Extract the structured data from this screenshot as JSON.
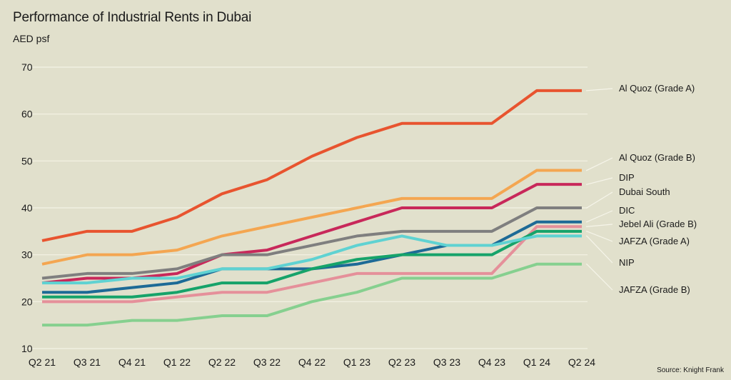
{
  "chart_data": {
    "type": "line",
    "title": "Performance of Industrial Rents in Dubai",
    "ylabel": "AED psf",
    "xlabel": "",
    "source": "Source: Knight Frank",
    "categories": [
      "Q2 21",
      "Q3 21",
      "Q4 21",
      "Q1 22",
      "Q2 22",
      "Q3 22",
      "Q4 22",
      "Q1 23",
      "Q2 23",
      "Q3 23",
      "Q4 23",
      "Q1 24",
      "Q2 24"
    ],
    "ylim": [
      10,
      70
    ],
    "yticks": [
      10,
      20,
      30,
      40,
      50,
      60,
      70
    ],
    "grid": "horizontal",
    "legend": "right",
    "series": [
      {
        "name": "Al Quoz (Grade A)",
        "color": "#e8542f",
        "values": [
          33,
          35,
          35,
          38,
          43,
          46,
          51,
          55,
          58,
          58,
          58,
          65,
          65
        ]
      },
      {
        "name": "Al Quoz (Grade B)",
        "color": "#f4a651",
        "values": [
          28,
          30,
          30,
          31,
          34,
          36,
          38,
          40,
          42,
          42,
          42,
          48,
          48
        ]
      },
      {
        "name": "DIP",
        "color": "#c8285a",
        "values": [
          24,
          25,
          25,
          26,
          30,
          31,
          34,
          37,
          40,
          40,
          40,
          45,
          45
        ]
      },
      {
        "name": "Dubai South",
        "color": "#7f7f7f",
        "values": [
          25,
          26,
          26,
          27,
          30,
          30,
          32,
          34,
          35,
          35,
          35,
          40,
          40
        ]
      },
      {
        "name": "DIC",
        "color": "#1d6a96",
        "values": [
          22,
          22,
          23,
          24,
          27,
          27,
          27,
          28,
          30,
          32,
          32,
          37,
          37
        ]
      },
      {
        "name": "Jebel Ali (Grade B)",
        "color": "#e5909a",
        "values": [
          20,
          20,
          20,
          21,
          22,
          22,
          24,
          26,
          26,
          26,
          26,
          36,
          36
        ]
      },
      {
        "name": "JAFZA (Grade A)",
        "color": "#16a36a",
        "values": [
          21,
          21,
          21,
          22,
          24,
          24,
          27,
          29,
          30,
          30,
          30,
          35,
          35
        ]
      },
      {
        "name": "NIP",
        "color": "#5fd2d2",
        "values": [
          24,
          24,
          25,
          25,
          27,
          27,
          29,
          32,
          34,
          32,
          32,
          34,
          34
        ]
      },
      {
        "name": "JAFZA (Grade B)",
        "color": "#86d08f",
        "values": [
          15,
          15,
          16,
          16,
          17,
          17,
          20,
          22,
          25,
          25,
          25,
          28,
          28
        ]
      }
    ]
  }
}
